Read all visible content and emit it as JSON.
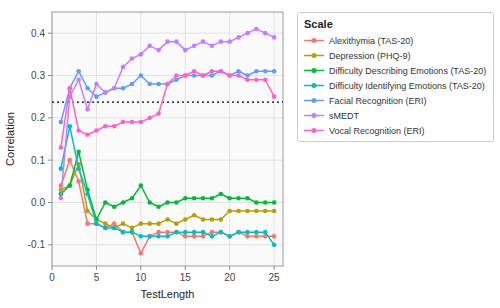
{
  "chart_data": {
    "type": "line",
    "x": [
      1,
      2,
      3,
      4,
      5,
      6,
      7,
      8,
      9,
      10,
      11,
      12,
      13,
      14,
      15,
      16,
      17,
      18,
      19,
      20,
      21,
      22,
      23,
      24,
      25
    ],
    "series": [
      {
        "name": "Alexithymia (TAS-20)",
        "color": "#F8766D",
        "marker": "circle",
        "values": [
          0.04,
          0.1,
          0.05,
          -0.05,
          -0.05,
          -0.06,
          -0.05,
          -0.07,
          -0.07,
          -0.12,
          -0.08,
          -0.07,
          -0.07,
          -0.07,
          -0.08,
          -0.08,
          -0.08,
          -0.07,
          -0.07,
          -0.08,
          -0.07,
          -0.08,
          -0.08,
          -0.08,
          -0.08
        ]
      },
      {
        "name": "Depression (PHQ-9)",
        "color": "#B79F00",
        "marker": "circle",
        "values": [
          0.03,
          0.04,
          0.09,
          -0.02,
          -0.04,
          -0.05,
          -0.06,
          -0.05,
          -0.06,
          -0.05,
          -0.05,
          -0.05,
          -0.04,
          -0.05,
          -0.04,
          -0.03,
          -0.04,
          -0.04,
          -0.04,
          -0.02,
          -0.02,
          -0.02,
          -0.02,
          -0.02,
          -0.02
        ]
      },
      {
        "name": "Difficulty Describing Emotions (TAS-20)",
        "color": "#00BA38",
        "marker": "circle",
        "values": [
          0.02,
          0.04,
          0.12,
          0.03,
          -0.04,
          0.0,
          -0.01,
          0.0,
          0.01,
          0.04,
          0.0,
          -0.01,
          0.0,
          0.0,
          0.01,
          0.01,
          0.01,
          0.01,
          0.02,
          0.01,
          0.01,
          0.01,
          0.0,
          0.0,
          0.0
        ]
      },
      {
        "name": "Difficulty Identifying Emotions (TAS-20)",
        "color": "#00BFC4",
        "marker": "circle",
        "values": [
          0.08,
          0.18,
          0.08,
          0.02,
          -0.05,
          -0.06,
          -0.06,
          -0.07,
          -0.07,
          -0.08,
          -0.08,
          -0.08,
          -0.08,
          -0.07,
          -0.07,
          -0.07,
          -0.07,
          -0.08,
          -0.07,
          -0.08,
          -0.07,
          -0.07,
          -0.07,
          -0.07,
          -0.1
        ]
      },
      {
        "name": "Facial Recognition (ERI)",
        "color": "#619CFF",
        "marker": "circle",
        "values": [
          0.19,
          0.27,
          0.31,
          0.27,
          0.25,
          0.26,
          0.27,
          0.27,
          0.28,
          0.3,
          0.28,
          0.28,
          0.28,
          0.29,
          0.3,
          0.3,
          0.3,
          0.3,
          0.31,
          0.3,
          0.31,
          0.3,
          0.31,
          0.31,
          0.31
        ]
      },
      {
        "name": "sMEDT",
        "color": "#C77CFF",
        "marker": "circle",
        "values": [
          0.01,
          0.25,
          0.29,
          0.22,
          0.28,
          0.26,
          0.27,
          0.32,
          0.34,
          0.35,
          0.37,
          0.36,
          0.38,
          0.38,
          0.36,
          0.37,
          0.38,
          0.37,
          0.38,
          0.38,
          0.39,
          0.4,
          0.41,
          0.4,
          0.39
        ]
      },
      {
        "name": "Vocal Recognition (ERI)",
        "color": "#FF61CC",
        "marker": "circle",
        "values": [
          0.13,
          0.27,
          0.17,
          0.16,
          0.17,
          0.18,
          0.18,
          0.19,
          0.19,
          0.19,
          0.2,
          0.21,
          0.28,
          0.3,
          0.3,
          0.31,
          0.3,
          0.31,
          0.31,
          0.3,
          0.3,
          0.29,
          0.29,
          0.29,
          0.25
        ]
      }
    ],
    "hline": 0.237,
    "xlabel": "TestLength",
    "ylabel": "Correlation",
    "legend_title": "Scale",
    "legend": "right",
    "xlim": [
      0,
      26
    ],
    "ylim": [
      -0.15,
      0.45
    ],
    "xticks": [
      0,
      5,
      10,
      15,
      20,
      25
    ],
    "yticks": [
      -0.1,
      {
        "value": 0,
        "label": "0.0"
      },
      0.1,
      0.2,
      0.3,
      0.4
    ],
    "grid": true
  }
}
